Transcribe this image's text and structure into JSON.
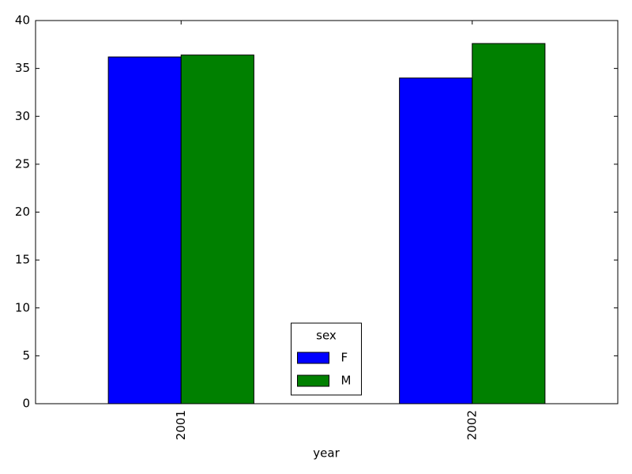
{
  "chart_data": {
    "type": "bar",
    "categories": [
      "2001",
      "2002"
    ],
    "x_label": "year",
    "series": [
      {
        "name": "F",
        "color": "#0000ff",
        "values": [
          36.2,
          34.0
        ]
      },
      {
        "name": "M",
        "color": "#008000",
        "values": [
          36.4,
          37.6
        ]
      }
    ],
    "legend_title": "sex",
    "legend_position": "lower center",
    "ylim": [
      0,
      40
    ],
    "yticks": [
      0,
      5,
      10,
      15,
      20,
      25,
      30,
      35,
      40
    ]
  }
}
